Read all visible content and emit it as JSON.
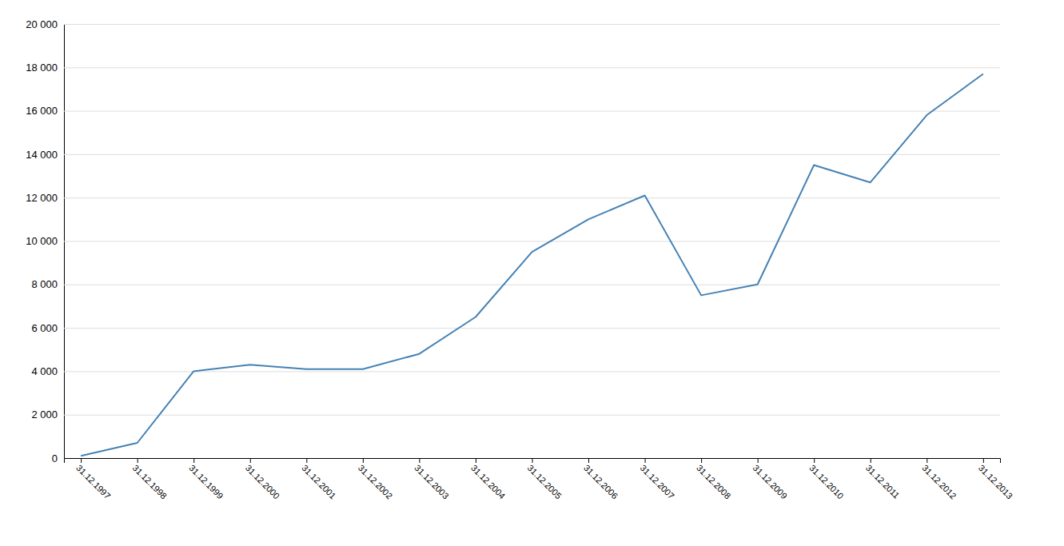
{
  "chart_data": {
    "type": "line",
    "categories": [
      "31.12.1997",
      "31.12.1998",
      "31.12.1999",
      "31.12.2000",
      "31.12.2001",
      "31.12.2002",
      "31.12.2003",
      "31.12.2004",
      "31.12.2005",
      "31.12.2006",
      "31.12.2007",
      "31.12.2008",
      "31.12.2009",
      "31.12.2010",
      "31.12.2011",
      "31.12.2012",
      "31.12.2013"
    ],
    "values": [
      100,
      700,
      4000,
      4300,
      4100,
      4100,
      4800,
      6500,
      9500,
      11000,
      12100,
      7500,
      8000,
      13500,
      12700,
      15800,
      17700
    ],
    "ylim": [
      0,
      20000
    ],
    "yticks": [
      0,
      {
        "value": 2000,
        "label": "2 000"
      },
      {
        "value": 4000,
        "label": "4 000"
      },
      {
        "value": 6000,
        "label": "6 000"
      },
      {
        "value": 8000,
        "label": "8 000"
      },
      {
        "value": 10000,
        "label": "10 000"
      },
      {
        "value": 12000,
        "label": "12 000"
      },
      {
        "value": 14000,
        "label": "14 000"
      },
      {
        "value": 16000,
        "label": "16 000"
      },
      {
        "value": 18000,
        "label": "18 000"
      },
      {
        "value": 20000,
        "label": "20 000"
      }
    ],
    "grid": true
  }
}
